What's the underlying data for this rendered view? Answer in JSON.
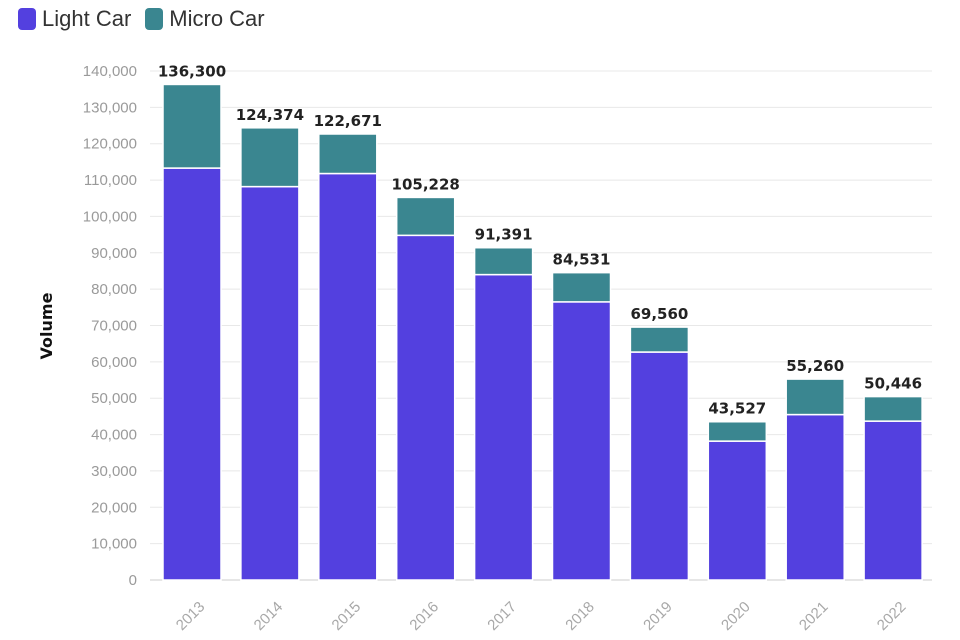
{
  "legend": {
    "items": [
      {
        "label": "Light Car",
        "color": "#5340df"
      },
      {
        "label": "Micro Car",
        "color": "#3a8690"
      }
    ]
  },
  "chart_data": {
    "type": "bar",
    "stacked": true,
    "categories": [
      "2013",
      "2014",
      "2015",
      "2016",
      "2017",
      "2018",
      "2019",
      "2020",
      "2021",
      "2022"
    ],
    "series": [
      {
        "name": "Light Car",
        "color": "#5340df",
        "values": [
          113300,
          108200,
          111800,
          94800,
          84000,
          76500,
          62700,
          38200,
          45500,
          43700
        ]
      },
      {
        "name": "Micro Car",
        "color": "#3a8690",
        "values": [
          23000,
          16174,
          10871,
          10428,
          7391,
          8031,
          6860,
          5327,
          9760,
          6746
        ]
      }
    ],
    "totals": [
      "136,300",
      "124,374",
      "122,671",
      "105,228",
      "91,391",
      "84,531",
      "69,560",
      "43,527",
      "55,260",
      "50,446"
    ],
    "ylabel": "Volume",
    "xlabel": "",
    "ylim": [
      0,
      140000
    ],
    "yticks": [
      0,
      10000,
      20000,
      30000,
      40000,
      50000,
      60000,
      70000,
      80000,
      90000,
      100000,
      110000,
      120000,
      130000,
      140000
    ],
    "grid": true,
    "legend_position": "top-left"
  }
}
